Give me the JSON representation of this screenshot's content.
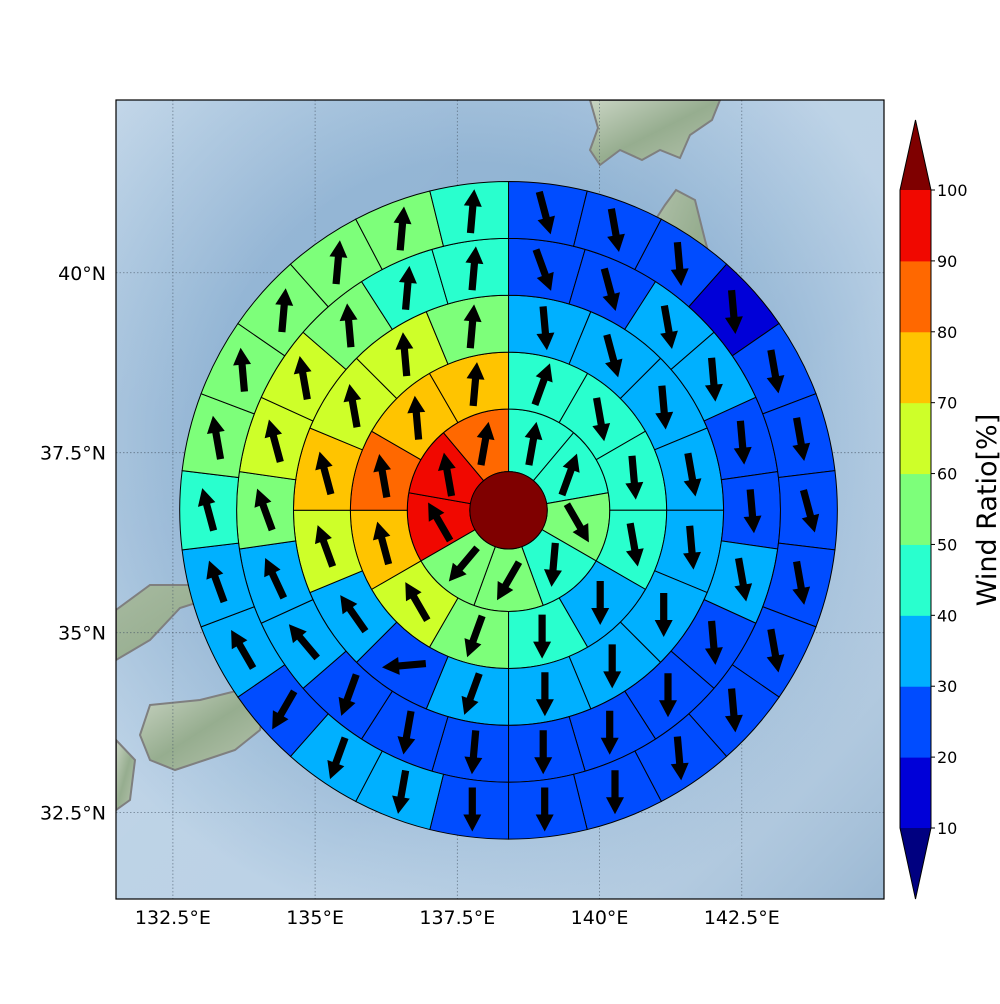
{
  "chart_data": {
    "type": "heatmap",
    "projection": "map",
    "x_ticks": [
      132.5,
      135,
      137.5,
      140,
      142.5
    ],
    "x_tick_labels": [
      "132.5°E",
      "135°E",
      "137.5°E",
      "140°E",
      "142.5°E"
    ],
    "y_ticks": [
      32.5,
      35,
      37.5,
      40
    ],
    "y_tick_labels": [
      "32.5°N",
      "35°N",
      "37.5°N",
      "40°N"
    ],
    "xlim": [
      131.5,
      145.0
    ],
    "ylim": [
      31.3,
      42.4
    ],
    "grid": true,
    "center": {
      "lon": 138.4,
      "lat": 36.7,
      "value": 100
    },
    "ring_radius_deg": [
      0.68,
      1.78,
      2.78,
      3.78,
      4.78,
      5.78
    ],
    "rings": [
      {
        "values": [
          45,
          45,
          55,
          45,
          50,
          50,
          95,
          95,
          85
        ],
        "wind_dir": [
          10,
          20,
          150,
          185,
          210,
          220,
          330,
          350,
          10
        ]
      },
      {
        "values": [
          45,
          45,
          45,
          45,
          35,
          45,
          55,
          65,
          75,
          85,
          75,
          75
        ],
        "wind_dir": [
          20,
          170,
          175,
          170,
          180,
          180,
          200,
          330,
          345,
          350,
          355,
          5
        ]
      },
      {
        "values": [
          35,
          35,
          35,
          35,
          35,
          35,
          35,
          35,
          35,
          25,
          35,
          65,
          75,
          65,
          65,
          55
        ],
        "wind_dir": [
          175,
          165,
          175,
          170,
          175,
          180,
          180,
          180,
          200,
          265,
          325,
          340,
          345,
          350,
          355,
          5
        ]
      },
      {
        "values": [
          25,
          25,
          35,
          35,
          25,
          25,
          35,
          25,
          25,
          25,
          25,
          25,
          25,
          25,
          35,
          35,
          55,
          65,
          65,
          55,
          45,
          45
        ],
        "wind_dir": [
          160,
          165,
          170,
          175,
          175,
          175,
          170,
          175,
          180,
          180,
          180,
          185,
          190,
          200,
          320,
          335,
          340,
          345,
          350,
          355,
          5,
          5
        ]
      },
      {
        "values": [
          25,
          25,
          25,
          15,
          25,
          25,
          25,
          25,
          25,
          25,
          25,
          25,
          25,
          25,
          35,
          35,
          25,
          35,
          35,
          45,
          55,
          55,
          55,
          55,
          55,
          45
        ],
        "wind_dir": [
          165,
          170,
          175,
          175,
          170,
          170,
          165,
          170,
          170,
          175,
          175,
          180,
          180,
          180,
          190,
          200,
          210,
          330,
          340,
          345,
          350,
          355,
          5,
          5,
          5,
          5
        ]
      }
    ],
    "colorbar": {
      "label": "Wind Ratio[%]",
      "ticks": [
        10,
        20,
        30,
        40,
        50,
        60,
        70,
        80,
        90,
        100
      ],
      "boundaries": [
        10,
        20,
        30,
        40,
        50,
        60,
        70,
        80,
        90,
        100
      ],
      "colors": [
        "#0000d8",
        "#004cff",
        "#00b0ff",
        "#29ffce",
        "#7dff7a",
        "#ceff29",
        "#ffc400",
        "#ff6800",
        "#f10800"
      ],
      "under_color": "#000080",
      "over_color": "#7f0000"
    },
    "colors": {
      "ocean_light": "#cfe0ef",
      "ocean_dark": "#7fa9cc",
      "coastline": "#7f7f7f",
      "land": "#9fb79a"
    }
  }
}
